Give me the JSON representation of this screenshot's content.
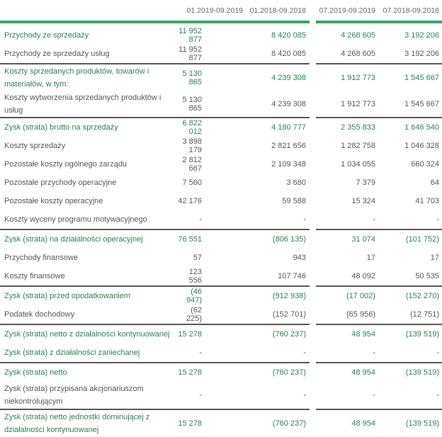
{
  "header": {
    "columns": [
      "01.2019-09.2019",
      "01.2018-09.2018",
      "07.2019-09.2019",
      "07.2018-09.2018"
    ]
  },
  "colors": {
    "accent": "#2eaa5c",
    "highlight_text": "#2e7d4f",
    "text": "#555555"
  },
  "rows": [
    {
      "label": "Przychody ze sprzedaży",
      "values": [
        "11 952 877",
        "8 420 085",
        "4 268 605",
        "3 192 206"
      ]
    },
    {
      "label": "Przychody ze sprzedaży usług",
      "values": [
        "11 952 877",
        "8 420 085",
        "4 268 605",
        "3 192 206"
      ]
    },
    {
      "label": "Koszty sprzedanych produktów, towarów i materiałów, w tym:",
      "values": [
        "5 130 865",
        "4 239 308",
        "1 912 773",
        "1 545 667"
      ]
    },
    {
      "label": "Koszty wytworzenia sprzedanych produktów i usług",
      "values": [
        "5 130 865",
        "4 239 308",
        "1 912 773",
        "1 545 667"
      ]
    },
    {
      "label": "Zysk (strata) brutto na sprzedaży",
      "values": [
        "6 822 012",
        "4 180 777",
        "2 355 833",
        "1 646 540"
      ]
    },
    {
      "label": "Koszty sprzedaży",
      "values": [
        "3 898 179",
        "2 821 656",
        "1 282 758",
        "1 046 328"
      ]
    },
    {
      "label": "Pozostałe koszty ogólnego zarządu",
      "values": [
        "2 812 667",
        "2 109 348",
        "1 034 055",
        "660 324"
      ]
    },
    {
      "label": "Pozostałe przychody operacyjne",
      "values": [
        "7 560",
        "3 680",
        "7 379",
        "64"
      ]
    },
    {
      "label": "Pozostałe koszty operacyjne",
      "values": [
        "42 176",
        "59 588",
        "15 324",
        "41 703"
      ]
    },
    {
      "label": "Koszty wyceny programu motywacyjnego",
      "values": [
        "-",
        "-",
        "-",
        "-"
      ]
    },
    {
      "label": "Zysk (strata) na działalności operacyjnej",
      "values": [
        "76 551",
        "(806 135)",
        "31 074",
        "(101 752)"
      ]
    },
    {
      "label": "Przychody finansowe",
      "values": [
        "57",
        "943",
        "17",
        "17"
      ]
    },
    {
      "label": "Koszty finansowe",
      "values": [
        "123 556",
        "107 746",
        "48 092",
        "50 535"
      ]
    },
    {
      "label": "Zysk (strata) przed opodatkowaniem",
      "values": [
        "(46 947)",
        "(912 938)",
        "(17 002)",
        "(152 270)"
      ]
    },
    {
      "label": "Podatek dochodowy",
      "values": [
        "(62 225)",
        "(152 701)",
        "(65 956)",
        "(12 751)"
      ]
    },
    {
      "label": "Zysk (strata) netto z działalności kontynuowanej",
      "values": [
        "15 278",
        "(760 237)",
        "48 954",
        "(139 519)"
      ]
    },
    {
      "label": "Zysk (strata) z działalności zaniechanej",
      "values": [
        "-",
        "-",
        "-",
        "-"
      ]
    },
    {
      "label": "Zysk (strata) netto",
      "values": [
        "15 278",
        "(760 237)",
        "48 954",
        "(139 519)"
      ]
    },
    {
      "label": "Zysk (strata) przypisana akcjonariuszom niekontrolującym",
      "values": [
        "-",
        "-",
        "-",
        "-"
      ]
    },
    {
      "label": "Zysk (strata) netto jednostki dominującej z działalności kontynuowanej",
      "values": [
        "15 278",
        "(760 237)",
        "48 954",
        "(139 519)"
      ]
    }
  ]
}
